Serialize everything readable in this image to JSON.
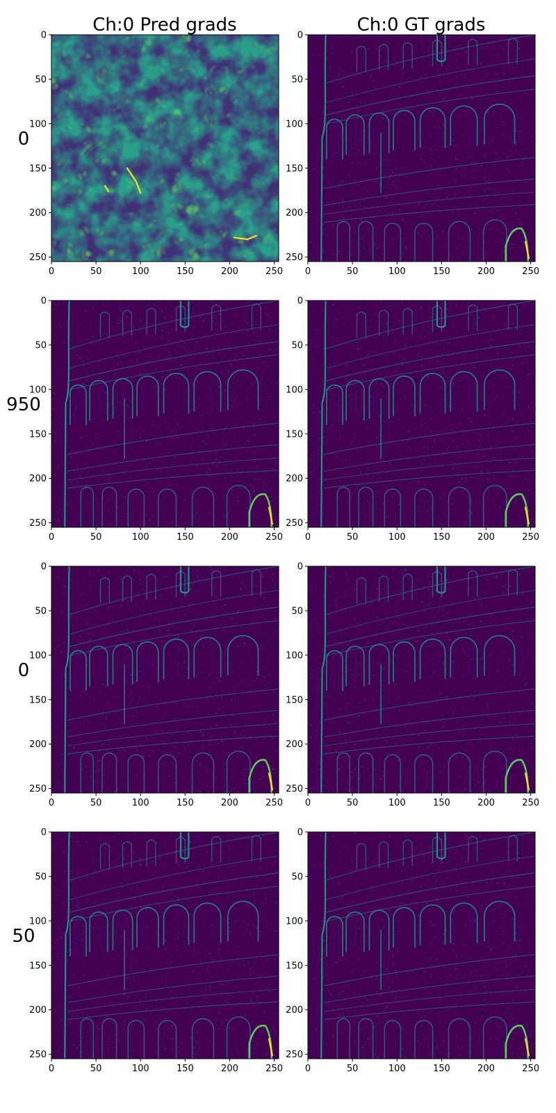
{
  "figure": {
    "column_titles": [
      "Ch:0 Pred grads",
      "Ch:0 GT grads"
    ],
    "row_labels": [
      "0",
      "950",
      "0",
      "50"
    ]
  },
  "chart_data": {
    "type": "heatmap",
    "colormap": "viridis",
    "grid": false,
    "layout": {
      "rows": 4,
      "cols": 2
    },
    "axes": {
      "xlim": [
        0,
        255
      ],
      "ylim": [
        255,
        0
      ],
      "y_inverted": true,
      "xticks": [
        0,
        50,
        100,
        150,
        200,
        250
      ],
      "yticks": [
        0,
        50,
        100,
        150,
        200,
        250
      ],
      "xtick_labels": [
        "0",
        "50",
        "100",
        "150",
        "200",
        "250"
      ],
      "ytick_labels": [
        "0",
        "50",
        "100",
        "150",
        "200",
        "250"
      ]
    },
    "panels": [
      {
        "row": 0,
        "col": 0,
        "column_title": "Ch:0 Pred grads",
        "row_label": "0",
        "content": "noise"
      },
      {
        "row": 0,
        "col": 1,
        "column_title": "Ch:0 GT grads",
        "row_label": "0",
        "content": "edges"
      },
      {
        "row": 1,
        "col": 0,
        "row_label": "950",
        "content": "edges"
      },
      {
        "row": 1,
        "col": 1,
        "row_label": "950",
        "content": "edges"
      },
      {
        "row": 2,
        "col": 0,
        "row_label": "0",
        "content": "edges"
      },
      {
        "row": 2,
        "col": 1,
        "row_label": "0",
        "content": "edges"
      },
      {
        "row": 3,
        "col": 0,
        "row_label": "50",
        "content": "edges"
      },
      {
        "row": 3,
        "col": 1,
        "row_label": "50",
        "content": "edges"
      }
    ],
    "colors": {
      "background": "#440154",
      "low": "#3b2a6e",
      "mid": "#2f6e8e",
      "edge": "#21918c",
      "bright": "#5ec962",
      "peak": "#fde725"
    }
  }
}
